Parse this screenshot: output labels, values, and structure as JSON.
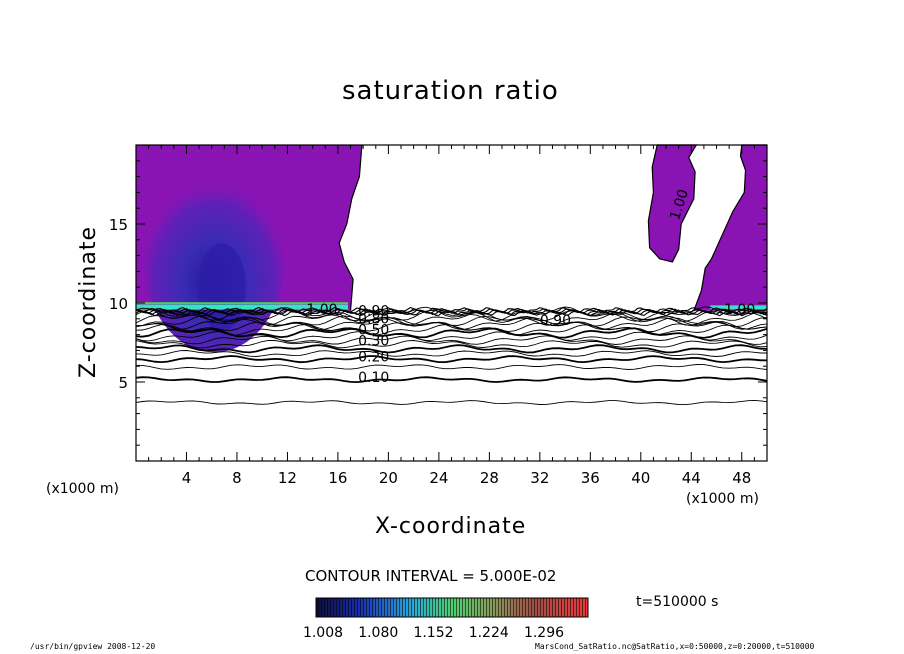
{
  "chart_data": {
    "type": "heatmap",
    "title": "saturation ratio",
    "xlabel": "X-coordinate",
    "ylabel": "Z-coordinate",
    "x_unit_left": "(x1000 m)",
    "x_unit_right": "(x1000 m)",
    "xlim": [
      0,
      50
    ],
    "ylim": [
      0,
      20
    ],
    "x_ticks": [
      4,
      8,
      12,
      16,
      20,
      24,
      28,
      32,
      36,
      40,
      44,
      48
    ],
    "y_ticks": [
      5,
      10,
      15
    ],
    "contour_interval_text": "CONTOUR INTERVAL = 5.000E-02",
    "time_text": "t=510000 s",
    "colorbar_labels": [
      "1.008",
      "1.080",
      "1.152",
      "1.224",
      "1.296"
    ],
    "contour_labels": [
      {
        "text": "0.10",
        "x": 17.6,
        "z": 5.0
      },
      {
        "text": "0.20",
        "x": 17.6,
        "z": 6.3
      },
      {
        "text": "0.30",
        "x": 17.6,
        "z": 7.3
      },
      {
        "text": "0.50",
        "x": 17.6,
        "z": 8.0
      },
      {
        "text": "0.80",
        "x": 17.6,
        "z": 8.7
      },
      {
        "text": "0.90",
        "x": 17.6,
        "z": 9.2
      },
      {
        "text": "1.00",
        "x": 13.5,
        "z": 9.3
      },
      {
        "text": "1.00",
        "x": 46.6,
        "z": 9.3
      },
      {
        "text": "1.00",
        "x": 43.0,
        "z": 15.2
      },
      {
        "text": "0.90",
        "x": 32.0,
        "z": 8.6
      }
    ],
    "supersaturated_regions": [
      {
        "name": "left",
        "x_range": [
          0,
          17
        ],
        "z_range": [
          9.5,
          20
        ]
      },
      {
        "name": "upper-right",
        "x_range": [
          40.5,
          45
        ],
        "z_range": [
          12.5,
          20
        ]
      },
      {
        "name": "right",
        "x_range": [
          44,
          50
        ],
        "z_range": [
          9.5,
          20
        ]
      }
    ]
  },
  "footer": {
    "left": "/usr/bin/gpview   2008-12-20",
    "right": "MarsCond_SatRatio.nc@SatRatio,x=0:50000,z=0:20000,t=510000"
  },
  "colors": {
    "purple": "#8a13b4",
    "blue": "#2d1ca8",
    "cyan": "#37e2c7",
    "green": "#53d04a"
  }
}
